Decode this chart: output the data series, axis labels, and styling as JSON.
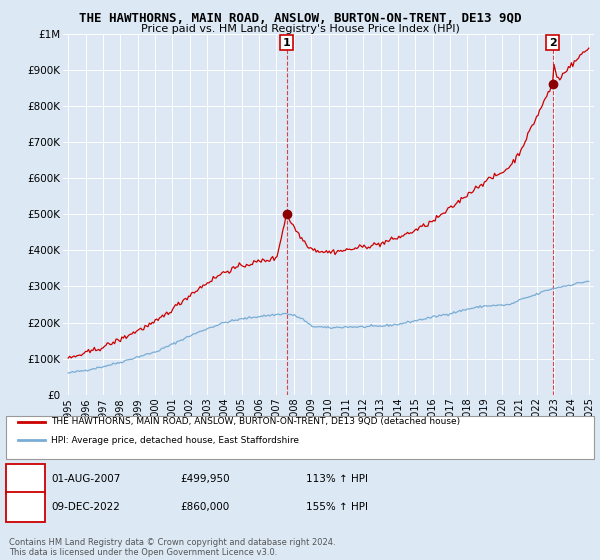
{
  "title": "THE HAWTHORNS, MAIN ROAD, ANSLOW, BURTON-ON-TRENT, DE13 9QD",
  "subtitle": "Price paid vs. HM Land Registry's House Price Index (HPI)",
  "bg_color": "#dce9f5",
  "plot_bg": "#dde8f4",
  "red_color": "#cc0000",
  "blue_color": "#7aadd4",
  "ylim": [
    0,
    1000000
  ],
  "yticks": [
    0,
    100000,
    200000,
    300000,
    400000,
    500000,
    600000,
    700000,
    800000,
    900000,
    1000000
  ],
  "ytick_labels": [
    "£0",
    "£100K",
    "£200K",
    "£300K",
    "£400K",
    "£500K",
    "£600K",
    "£700K",
    "£800K",
    "£900K",
    "£1M"
  ],
  "sale1_date": 2007.58,
  "sale1_price": 499950,
  "sale2_date": 2022.92,
  "sale2_price": 860000,
  "legend_line1": "THE HAWTHORNS, MAIN ROAD, ANSLOW, BURTON-ON-TRENT, DE13 9QD (detached house)",
  "legend_line2": "HPI: Average price, detached house, East Staffordshire",
  "note1_label": "1",
  "note1_date": "01-AUG-2007",
  "note1_price": "£499,950",
  "note1_hpi": "113% ↑ HPI",
  "note2_label": "2",
  "note2_date": "09-DEC-2022",
  "note2_price": "£860,000",
  "note2_hpi": "155% ↑ HPI",
  "footer": "Contains HM Land Registry data © Crown copyright and database right 2024.\nThis data is licensed under the Open Government Licence v3.0."
}
